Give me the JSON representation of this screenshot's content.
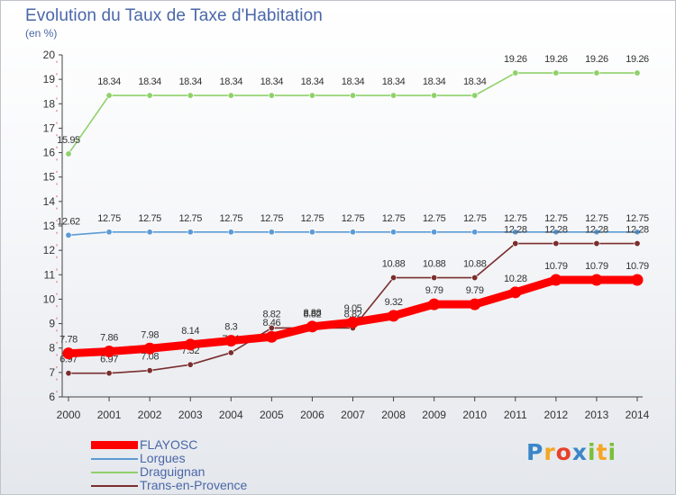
{
  "title": "Evolution du Taux de Taxe d'Habitation",
  "subtitle": "(en %)",
  "logo": {
    "letters": [
      "P",
      "r",
      "o",
      "x",
      "i",
      "t",
      "i"
    ],
    "colors": [
      "#3a86c8",
      "#f5a623",
      "#e8402a",
      "#3a86c8",
      "#7bbf3a",
      "#f5a623",
      "#7bbf3a"
    ]
  },
  "chart_data": {
    "type": "line",
    "title": "Evolution du Taux de Taxe d'Habitation",
    "subtitle": "(en %)",
    "x": [
      "2000",
      "2001",
      "2002",
      "2003",
      "2004",
      "2005",
      "2006",
      "2007",
      "2008",
      "2009",
      "2010",
      "2011",
      "2012",
      "2013",
      "2014"
    ],
    "ylim": [
      6,
      20
    ],
    "yticks": [
      "6",
      "7",
      "8",
      "9",
      "10",
      "11",
      "12",
      "13",
      "14",
      "15",
      "16",
      "17",
      "18",
      "19",
      "20"
    ],
    "grid": false,
    "legend_position": "bottom-left",
    "series": [
      {
        "name": "Draguignan",
        "color": "#8fd16a",
        "values": [
          15.95,
          18.34,
          18.34,
          18.34,
          18.34,
          18.34,
          18.34,
          18.34,
          18.34,
          18.34,
          18.34,
          19.26,
          19.26,
          19.26,
          19.26
        ],
        "labels": [
          "15.95",
          "18.34",
          "18.34",
          "18.34",
          "18.34",
          "18.34",
          "18.34",
          "18.34",
          "18.34",
          "18.34",
          "18.34",
          "19.26",
          "19.26",
          "19.26",
          "19.26"
        ]
      },
      {
        "name": "Lorgues",
        "color": "#5b9bd5",
        "values": [
          12.62,
          12.75,
          12.75,
          12.75,
          12.75,
          12.75,
          12.75,
          12.75,
          12.75,
          12.75,
          12.75,
          12.75,
          12.75,
          12.75,
          12.75
        ],
        "labels": [
          "12.62",
          "12.75",
          "12.75",
          "12.75",
          "12.75",
          "12.75",
          "12.75",
          "12.75",
          "12.75",
          "12.75",
          "12.75",
          "12.75",
          "12.75",
          "12.75",
          "12.75"
        ]
      },
      {
        "name": "Trans-en-Provence",
        "color": "#7a2e2e",
        "values": [
          6.97,
          6.97,
          7.08,
          7.32,
          7.81,
          8.82,
          8.82,
          8.82,
          10.88,
          10.88,
          10.88,
          12.28,
          12.28,
          12.28,
          12.28
        ],
        "labels": [
          "6.97",
          "6.97",
          "7.08",
          "7.32",
          "7.81",
          "8.82",
          "8.82",
          "8.82",
          "10.88",
          "10.88",
          "10.88",
          "12.28",
          "12.28",
          "12.28",
          "12.28"
        ]
      },
      {
        "name": "FLAYOSC",
        "color": "#ff0000",
        "values": [
          7.78,
          7.86,
          7.98,
          8.14,
          8.3,
          8.46,
          8.88,
          9.05,
          9.32,
          9.79,
          9.79,
          10.28,
          10.79,
          10.79,
          10.79
        ],
        "labels": [
          "7.78",
          "7.86",
          "7.98",
          "8.14",
          "8.3",
          "8.46",
          "8.88",
          "9.05",
          "9.32",
          "9.79",
          "9.79",
          "10.28",
          "10.79",
          "10.79",
          "10.79"
        ]
      }
    ],
    "legend": [
      "FLAYOSC",
      "Lorgues",
      "Draguignan",
      "Trans-en-Provence"
    ]
  }
}
